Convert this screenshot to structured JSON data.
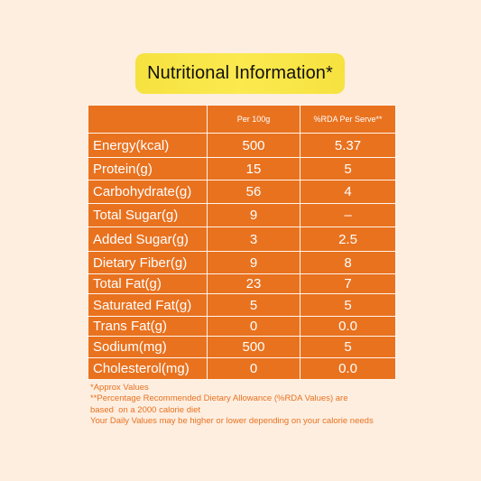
{
  "title": "Nutritional Information*",
  "table": {
    "headers": [
      "",
      "Per 100g",
      "%RDA Per Serve**"
    ],
    "rows": [
      {
        "label": "Energy(kcal)",
        "per100g": "500",
        "rda": "5.37"
      },
      {
        "label": "Protein(g)",
        "per100g": "15",
        "rda": "5"
      },
      {
        "label": "Carbohydrate(g)",
        "per100g": "56",
        "rda": "4"
      },
      {
        "label": "Total Sugar(g)",
        "per100g": "9",
        "rda": "–"
      },
      {
        "label": "Added Sugar(g)",
        "per100g": "3",
        "rda": "2.5"
      },
      {
        "label": "Dietary Fiber(g)",
        "per100g": "9",
        "rda": "8"
      },
      {
        "label": "Total Fat(g)",
        "per100g": "23",
        "rda": "7"
      },
      {
        "label": "Saturated Fat(g)",
        "per100g": "5",
        "rda": "5"
      },
      {
        "label": "Trans Fat(g)",
        "per100g": "0",
        "rda": "0.0"
      },
      {
        "label": "Sodium(mg)",
        "per100g": "500",
        "rda": "5"
      },
      {
        "label": "Cholesterol(mg)",
        "per100g": "0",
        "rda": "0.0"
      }
    ]
  },
  "footnotes": {
    "line1": "*Approx Values",
    "line2": "**Percentage Recommended Dietary Allowance (%RDA Values) are",
    "line3": "based  on a 2000 calorie diet",
    "line4": "Your Daily Values may be higher or lower depending on your calorie needs"
  },
  "colors": {
    "background": "#fdeee0",
    "table_fill": "#e9721f",
    "title_badge": "#f6e23f",
    "footnote_text": "#e9721f"
  }
}
